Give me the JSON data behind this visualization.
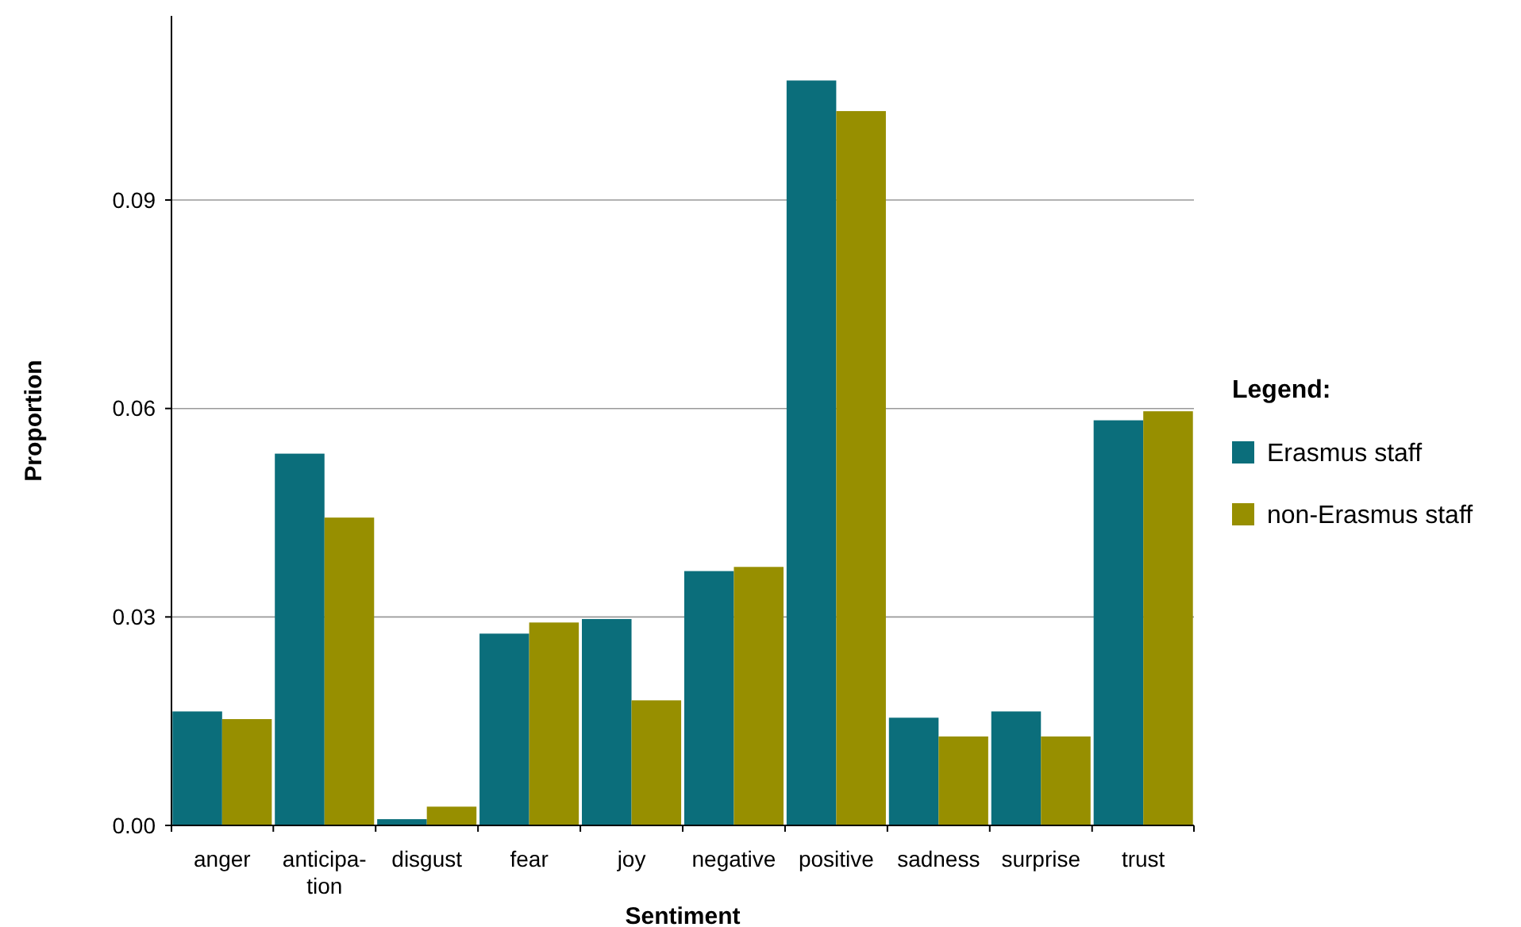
{
  "chart_data": {
    "type": "bar",
    "xlabel": "Sentiment",
    "ylabel": "Proportion",
    "legend_title": "Legend:",
    "categories": [
      "anger",
      "anticipa-tion",
      "disgust",
      "fear",
      "joy",
      "negative",
      "positive",
      "sadness",
      "surprise",
      "trust"
    ],
    "series": [
      {
        "name": "Erasmus staff",
        "color": "#0b6e7b",
        "values": [
          0.0164,
          0.0535,
          0.0009,
          0.0276,
          0.0297,
          0.0366,
          0.1072,
          0.0155,
          0.0164,
          0.0583
        ]
      },
      {
        "name": "non-Erasmus staff",
        "color": "#978f00",
        "values": [
          0.0153,
          0.0443,
          0.0027,
          0.0292,
          0.018,
          0.0372,
          0.1028,
          0.0128,
          0.0128,
          0.0596
        ]
      }
    ],
    "ylim": [
      0,
      0.1165
    ],
    "yticks": [
      {
        "value": 0,
        "label": "0.00"
      },
      {
        "value": 0.03,
        "label": "0.03"
      },
      {
        "value": 0.06,
        "label": "0.06"
      },
      {
        "value": 0.09,
        "label": "0.09"
      }
    ],
    "grid": "y",
    "legend": "right"
  }
}
